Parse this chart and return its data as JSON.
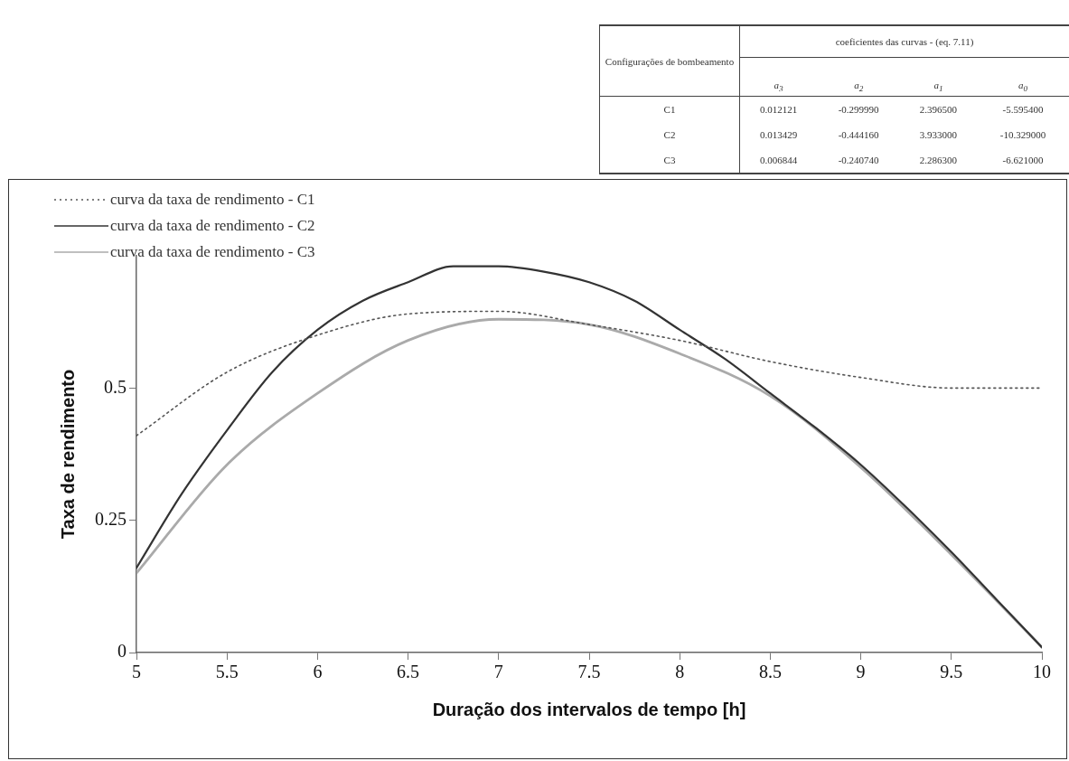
{
  "chart_data": {
    "type": "line",
    "xlabel": "Duração dos intervalos de tempo [h]",
    "ylabel": "Taxa de rendimento",
    "xlim": [
      5,
      10
    ],
    "xticks": [
      5,
      5.5,
      6,
      6.5,
      7,
      7.5,
      8,
      8.5,
      9,
      9.5,
      10
    ],
    "ylim": [
      0,
      0.75
    ],
    "yticks": [
      0,
      0.25,
      0.5
    ],
    "grid": false,
    "legend": "top left",
    "marker": "none",
    "series": [
      {
        "name": "curva da taxa de rendimento - C1",
        "color": "#555555",
        "line_style": "dotted",
        "x": [
          5,
          5.5,
          6,
          6.5,
          7,
          7.5,
          8,
          8.5,
          9,
          9.5,
          10
        ],
        "values": [
          0.41,
          0.53,
          0.6,
          0.64,
          0.645,
          0.62,
          0.59,
          0.55,
          0.52,
          0.5,
          0.5
        ]
      },
      {
        "name": "curva da taxa de rendimento - C2",
        "color": "#333333",
        "line_style": "solid",
        "x": [
          5,
          5.25,
          5.5,
          5.75,
          6,
          6.25,
          6.5,
          6.75,
          7,
          7.25,
          7.5,
          7.75,
          8,
          8.25,
          8.5,
          8.75,
          9,
          9.25,
          9.5,
          9.75,
          10
        ],
        "values": [
          0.16,
          0.3,
          0.42,
          0.53,
          0.61,
          0.665,
          0.7,
          0.73,
          0.73,
          0.72,
          0.7,
          0.665,
          0.61,
          0.555,
          0.49,
          0.425,
          0.355,
          0.275,
          0.19,
          0.1,
          0.01
        ]
      },
      {
        "name": "curva da taxa de rendimento - C3",
        "color": "#aaaaaa",
        "line_style": "solid",
        "x": [
          5,
          5.5,
          6,
          6.5,
          7,
          7.5,
          8,
          8.5,
          9,
          9.5,
          10
        ],
        "values": [
          0.15,
          0.355,
          0.49,
          0.59,
          0.63,
          0.62,
          0.565,
          0.485,
          0.35,
          0.185,
          0.01
        ]
      }
    ],
    "annotations": [
      "coeficientes das curvas - (eq. 7.11)",
      "Configurações de bombeamento",
      "a$_{3}$",
      "a$_{2}$",
      "a$_{1}$",
      "a$_{0}$",
      "C1",
      "0.012121",
      "-0.299990",
      "2.396500",
      "-5.595400",
      "C2",
      "0.013429",
      "-0.444160",
      "3.933000",
      "-10.329000",
      "C3",
      "0.006844",
      "-0.240740",
      "2.286300",
      "-6.621000"
    ]
  }
}
